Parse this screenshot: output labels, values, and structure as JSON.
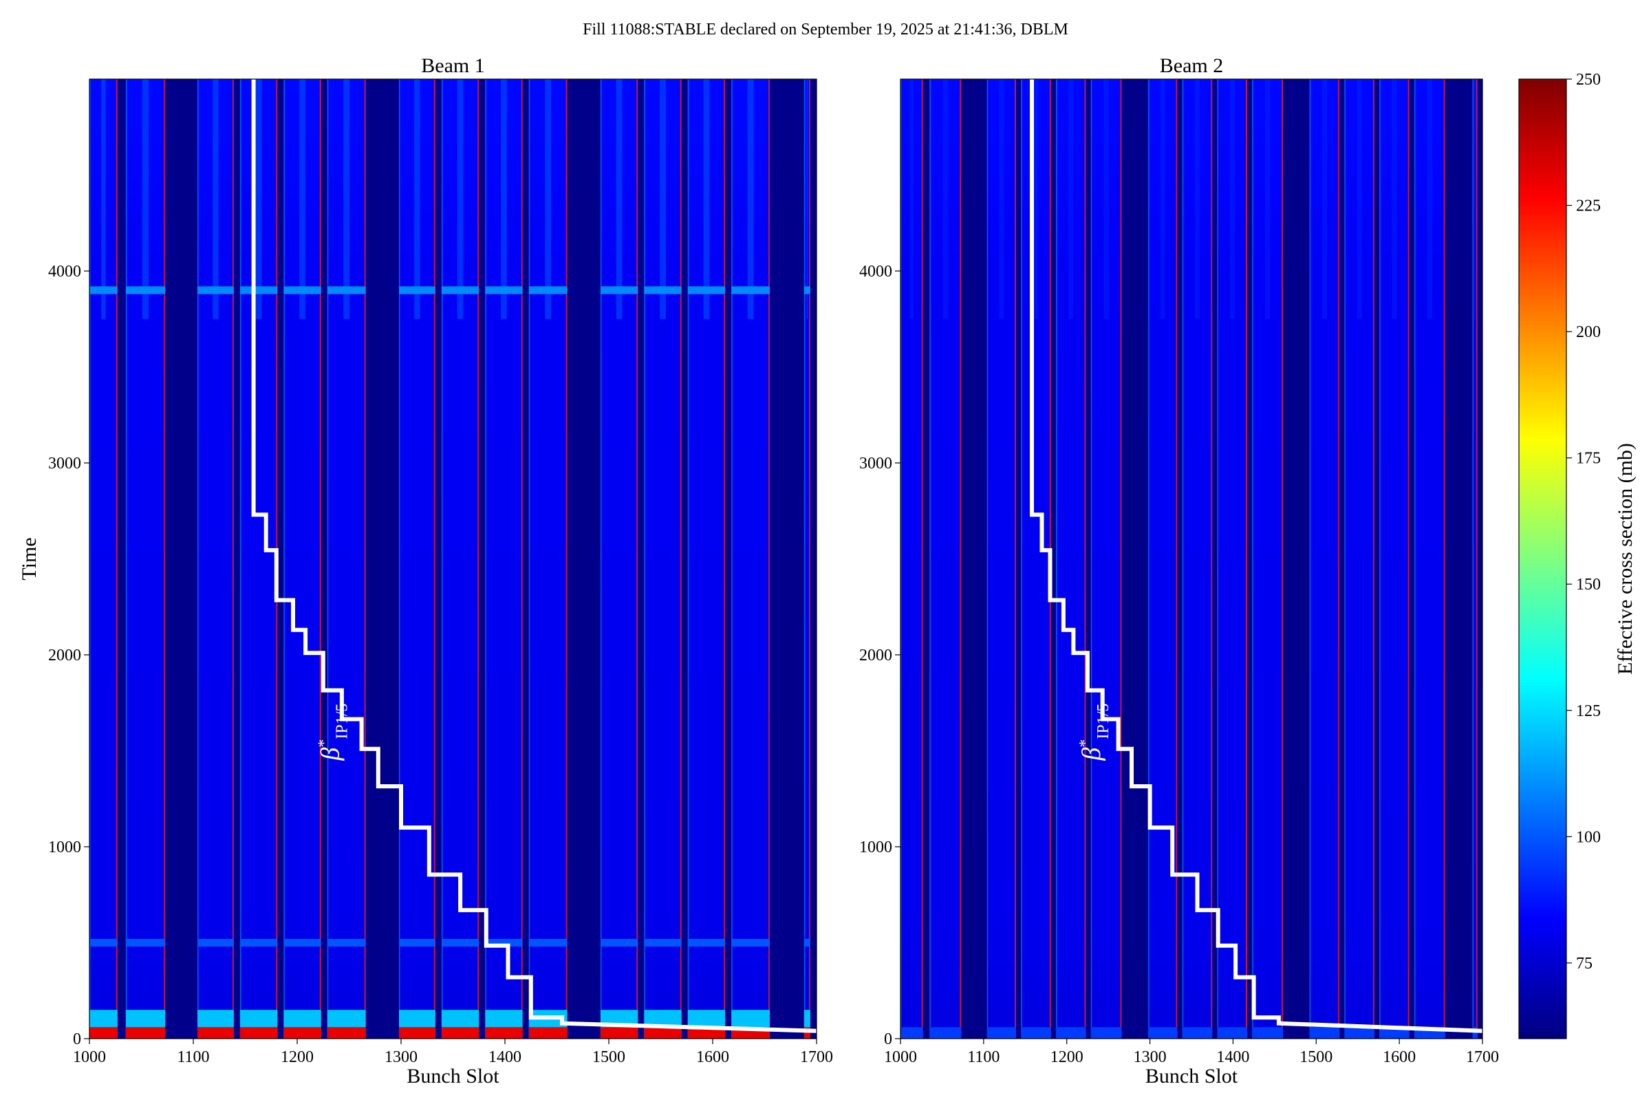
{
  "title": "Fill 11088:STABLE declared on September 19, 2025 at 21:41:36, DBLM",
  "colorbar": {
    "label": "Effective cross section (mb)",
    "min": 60,
    "max": 250,
    "ticks": [
      75,
      100,
      125,
      150,
      175,
      200,
      225,
      250
    ],
    "colormap": [
      "#00007f",
      "#0000ff",
      "#007fff",
      "#00ffff",
      "#7fff7f",
      "#ffff00",
      "#ff7f00",
      "#ff0000",
      "#7f0000"
    ]
  },
  "chart_data": [
    {
      "type": "heatmap",
      "title": "Beam 1",
      "xlabel": "Bunch Slot",
      "ylabel": "Time",
      "xlim": [
        1000,
        1700
      ],
      "ylim": [
        0,
        5000
      ],
      "xticks": [
        1000,
        1100,
        1200,
        1300,
        1400,
        1500,
        1600,
        1700
      ],
      "yticks": [
        0,
        1000,
        2000,
        3000,
        4000
      ],
      "filled_bands": [
        [
          1000,
          1027
        ],
        [
          1035,
          1073
        ],
        [
          1104,
          1139
        ],
        [
          1145,
          1181
        ],
        [
          1187,
          1223
        ],
        [
          1229,
          1266
        ],
        [
          1298,
          1333
        ],
        [
          1339,
          1375
        ],
        [
          1381,
          1417
        ],
        [
          1423,
          1460
        ],
        [
          1492,
          1528
        ],
        [
          1534,
          1570
        ],
        [
          1576,
          1612
        ],
        [
          1618,
          1655
        ],
        [
          1688,
          1694
        ]
      ],
      "band_value": 82,
      "edge_value": 220,
      "empty_value": 62,
      "beta_star_line": [
        [
          1158,
          5000
        ],
        [
          1158,
          2730
        ],
        [
          1170,
          2730
        ],
        [
          1170,
          2545
        ],
        [
          1180,
          2545
        ],
        [
          1180,
          2285
        ],
        [
          1196,
          2285
        ],
        [
          1196,
          2130
        ],
        [
          1208,
          2130
        ],
        [
          1208,
          2010
        ],
        [
          1225,
          2010
        ],
        [
          1225,
          1815
        ],
        [
          1243,
          1815
        ],
        [
          1243,
          1665
        ],
        [
          1262,
          1665
        ],
        [
          1262,
          1510
        ],
        [
          1278,
          1510
        ],
        [
          1278,
          1315
        ],
        [
          1300,
          1315
        ],
        [
          1300,
          1100
        ],
        [
          1327,
          1100
        ],
        [
          1327,
          855
        ],
        [
          1357,
          855
        ],
        [
          1357,
          670
        ],
        [
          1382,
          670
        ],
        [
          1382,
          485
        ],
        [
          1403,
          485
        ],
        [
          1403,
          320
        ],
        [
          1425,
          320
        ],
        [
          1425,
          110
        ],
        [
          1455,
          110
        ],
        [
          1455,
          80
        ],
        [
          1700,
          40
        ]
      ],
      "annotation": {
        "text": "β",
        "sup": "*",
        "sub": "IP1/5",
        "x": 1240,
        "y": 1450
      }
    },
    {
      "type": "heatmap",
      "title": "Beam 2",
      "xlabel": "Bunch Slot",
      "ylabel": "",
      "xlim": [
        1000,
        1700
      ],
      "ylim": [
        0,
        5000
      ],
      "xticks": [
        1000,
        1100,
        1200,
        1300,
        1400,
        1500,
        1600,
        1700
      ],
      "yticks": [
        0,
        1000,
        2000,
        3000,
        4000
      ],
      "filled_bands": [
        [
          1000,
          1027
        ],
        [
          1035,
          1073
        ],
        [
          1104,
          1139
        ],
        [
          1145,
          1181
        ],
        [
          1187,
          1223
        ],
        [
          1229,
          1266
        ],
        [
          1298,
          1333
        ],
        [
          1339,
          1375
        ],
        [
          1381,
          1417
        ],
        [
          1423,
          1460
        ],
        [
          1492,
          1528
        ],
        [
          1534,
          1570
        ],
        [
          1576,
          1612
        ],
        [
          1618,
          1655
        ],
        [
          1688,
          1694
        ]
      ],
      "band_value": 82,
      "edge_value": 220,
      "empty_value": 62,
      "beta_star_line": [
        [
          1158,
          5000
        ],
        [
          1158,
          2730
        ],
        [
          1170,
          2730
        ],
        [
          1170,
          2545
        ],
        [
          1180,
          2545
        ],
        [
          1180,
          2285
        ],
        [
          1196,
          2285
        ],
        [
          1196,
          2130
        ],
        [
          1208,
          2130
        ],
        [
          1208,
          2010
        ],
        [
          1225,
          2010
        ],
        [
          1225,
          1815
        ],
        [
          1243,
          1815
        ],
        [
          1243,
          1665
        ],
        [
          1262,
          1665
        ],
        [
          1262,
          1510
        ],
        [
          1278,
          1510
        ],
        [
          1278,
          1315
        ],
        [
          1300,
          1315
        ],
        [
          1300,
          1100
        ],
        [
          1327,
          1100
        ],
        [
          1327,
          855
        ],
        [
          1357,
          855
        ],
        [
          1357,
          670
        ],
        [
          1382,
          670
        ],
        [
          1382,
          485
        ],
        [
          1403,
          485
        ],
        [
          1403,
          320
        ],
        [
          1425,
          320
        ],
        [
          1425,
          110
        ],
        [
          1455,
          110
        ],
        [
          1455,
          80
        ],
        [
          1700,
          40
        ]
      ],
      "annotation": {
        "text": "β",
        "sup": "*",
        "sub": "IP1/5",
        "x": 1240,
        "y": 1450
      }
    }
  ]
}
